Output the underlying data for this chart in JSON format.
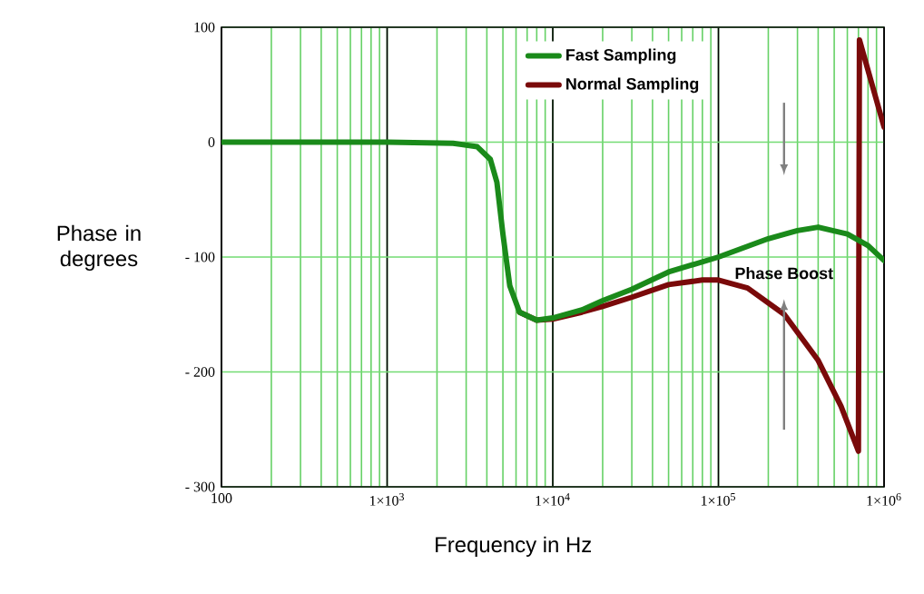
{
  "chart_data": {
    "type": "line",
    "xlabel": "Frequency in Hz",
    "ylabel": "Phase in degrees",
    "log": "x",
    "grid": true,
    "legend": "top",
    "marker": "none",
    "line_style": "solid",
    "xlim": [
      100,
      1000000
    ],
    "ylim": [
      -300,
      100
    ],
    "xticks": [
      100,
      {
        "value": 1000,
        "label": "1×10$^{3}$"
      },
      {
        "value": 10000,
        "label": "1×10$^{4}$"
      },
      {
        "value": 100000,
        "label": "1×10$^{5}$"
      },
      {
        "value": 1000000,
        "label": "1×10$^{6}$"
      }
    ],
    "yticks": [
      {
        "value": -300,
        "label": "- 300"
      },
      {
        "value": -200,
        "label": "- 200"
      },
      {
        "value": -100,
        "label": "- 100"
      },
      0,
      100
    ],
    "series": [
      {
        "name": "Normal Sampling",
        "color": "#7a0a0a",
        "x": [
          6300,
          8000,
          10000,
          15000,
          20000,
          30000,
          50000,
          80000,
          100000,
          150000,
          250000,
          400000,
          550000,
          700000,
          710000,
          1000000
        ],
        "values": [
          -148,
          -155,
          -154,
          -148,
          -143,
          -135,
          -124,
          -120,
          -120,
          -127,
          -150,
          -190,
          -230,
          -269,
          89,
          13
        ]
      },
      {
        "name": "Fast Sampling",
        "color": "#1a8a1a",
        "x": [
          100,
          1000,
          2500,
          3500,
          4200,
          4600,
          5000,
          5500,
          6300,
          8000,
          10000,
          15000,
          20000,
          30000,
          50000,
          100000,
          200000,
          300000,
          400000,
          600000,
          800000,
          1000000
        ],
        "values": [
          0,
          0,
          -1,
          -4,
          -15,
          -35,
          -80,
          -125,
          -148,
          -155,
          -153,
          -146,
          -138,
          -128,
          -113,
          -100,
          -84,
          -77,
          -74,
          -80,
          -90,
          -103
        ]
      }
    ],
    "annotations": [
      "Phase Boost"
    ]
  }
}
